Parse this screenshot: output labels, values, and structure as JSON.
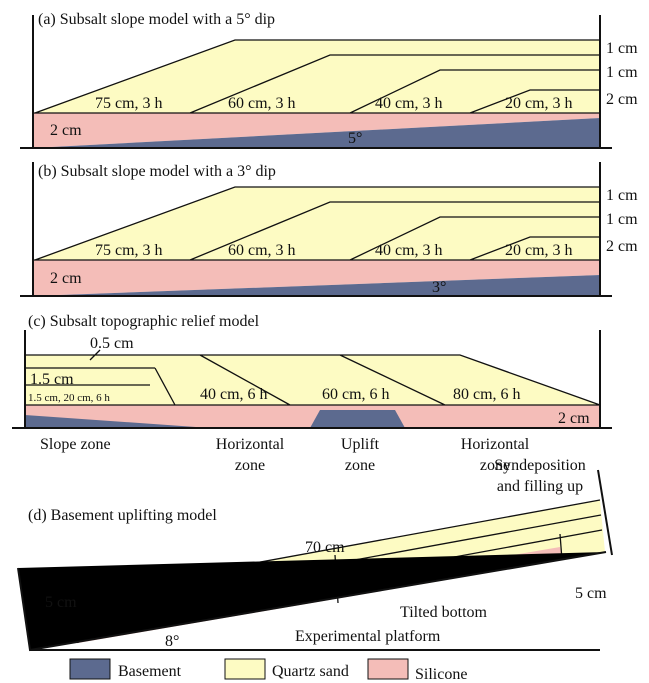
{
  "panel_a": {
    "title": "(a) Subsalt slope model with a 5° dip",
    "layers": [
      "75 cm, 3 h",
      "60 cm, 3 h",
      "40 cm, 3 h",
      "20 cm, 3 h"
    ],
    "silicone": "2 cm",
    "dip": "5°",
    "thickness": [
      "1 cm",
      "1 cm",
      "2 cm"
    ]
  },
  "panel_b": {
    "title": "(b) Subsalt slope model with a 3° dip",
    "layers": [
      "75 cm, 3 h",
      "60 cm, 3 h",
      "40 cm, 3 h",
      "20 cm, 3 h"
    ],
    "silicone": "2 cm",
    "dip": "3°",
    "thickness": [
      "1 cm",
      "1 cm",
      "2 cm"
    ]
  },
  "panel_c": {
    "title": "(c) Subsalt topographic relief model",
    "thickness_top": "0.5 cm",
    "thickness_mid": "1.5 cm",
    "layers": [
      "1.5 cm, 20 cm, 6 h",
      "40 cm, 6 h",
      "60 cm, 6 h",
      "80 cm, 6 h"
    ],
    "silicone": "2 cm",
    "zones": [
      [
        "Slope zone"
      ],
      [
        "Horizontal",
        "zone"
      ],
      [
        "Uplift",
        "zone"
      ],
      [
        "Horizontal",
        "zone"
      ]
    ]
  },
  "panel_d": {
    "title": "(d) Basement uplifting model",
    "note": [
      "Syndeposition",
      "and filling up"
    ],
    "length": "70 cm",
    "thickness_left": "5 cm",
    "thickness_right": "5 cm",
    "bottom": "Tilted bottom",
    "angle": "8°",
    "platform": "Experimental platform"
  },
  "legend": [
    "Basement",
    "Quartz sand",
    "Silicone"
  ]
}
